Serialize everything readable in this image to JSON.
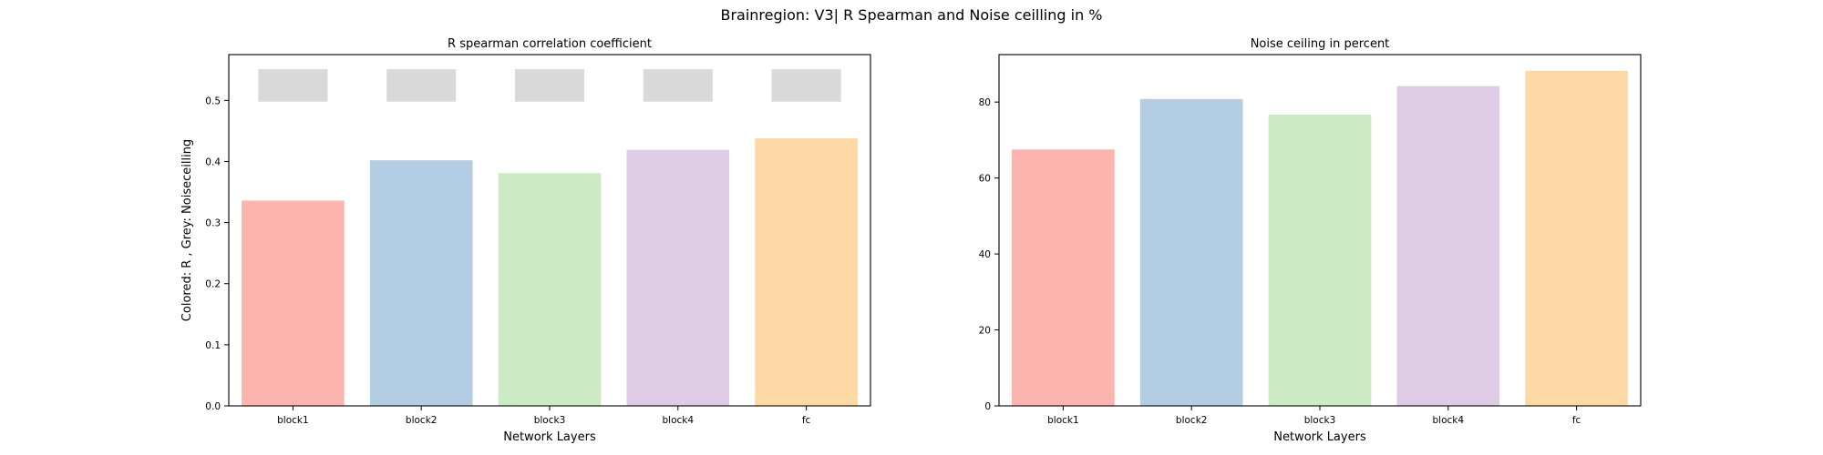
{
  "figure": {
    "suptitle": "Brainregion: V3| R Spearman and Noise ceilling in %"
  },
  "colors": {
    "bars": [
      "#fbb4ae",
      "#b3cde3",
      "#ccebc5",
      "#decbe4",
      "#fed9a6"
    ],
    "noise_ceiling_marker": "#d9d9d9"
  },
  "chart_data": [
    {
      "type": "bar",
      "title": "R spearman correlation coefficient",
      "xlabel": "Network Layers",
      "ylabel": "Colored: R , Grey: Noiseceilling",
      "categories": [
        "block1",
        "block2",
        "block3",
        "block4",
        "fc"
      ],
      "series": [
        {
          "values": [
            0.336,
            0.402,
            0.381,
            0.419,
            0.438
          ]
        },
        {
          "values": [
            0.525,
            0.525,
            0.525,
            0.525,
            0.525
          ],
          "style": "grey box spanning 0.498 to 0.551"
        }
      ],
      "noise_ceiling_range": [
        0.498,
        0.551
      ],
      "ylim": [
        0,
        0.575
      ],
      "yticks": [
        0.0,
        0.1,
        0.2,
        0.3,
        0.4,
        0.5
      ],
      "ytick_labels": [
        "0.0",
        "0.1",
        "0.2",
        "0.3",
        "0.4",
        "0.5"
      ],
      "grid": false
    },
    {
      "type": "bar",
      "title": "Noise ceiling in percent",
      "xlabel": "Network Layers",
      "ylabel": "",
      "categories": [
        "block1",
        "block2",
        "block3",
        "block4",
        "fc"
      ],
      "series": [
        {
          "values": [
            67.5,
            80.8,
            76.7,
            84.2,
            88.2
          ]
        }
      ],
      "ylim": [
        0,
        92.5
      ],
      "yticks": [
        0,
        20,
        40,
        60,
        80
      ],
      "ytick_labels": [
        "0",
        "20",
        "40",
        "60",
        "80"
      ],
      "grid": false
    }
  ]
}
